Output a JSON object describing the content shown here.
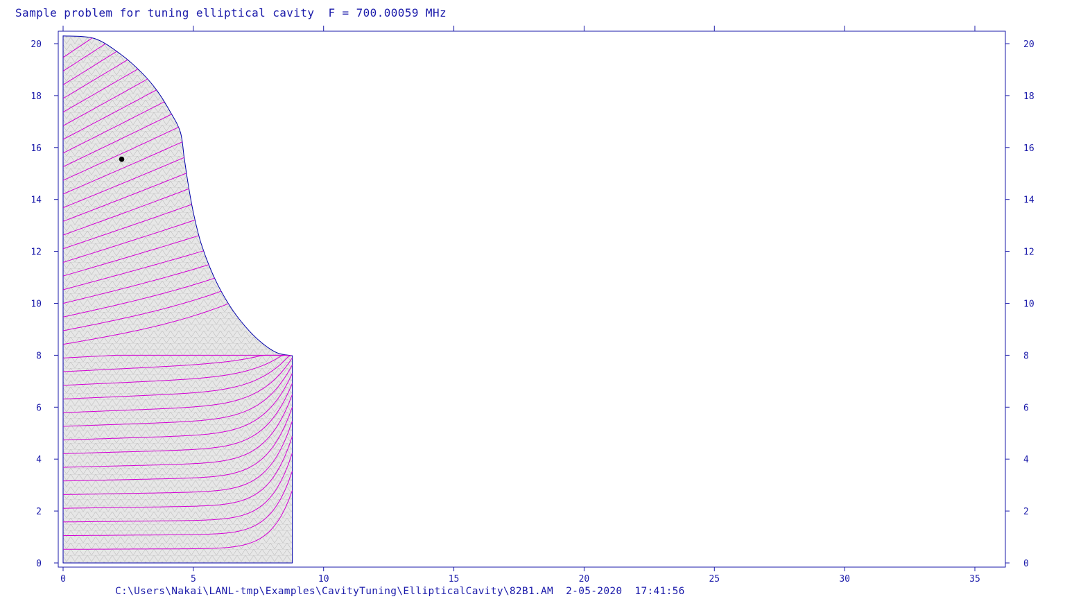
{
  "title": "Sample problem for tuning elliptical cavity  F = 700.00059 MHz",
  "footer": "C:\\Users\\Nakai\\LANL-tmp\\Examples\\CavityTuning\\EllipticalCavity\\82B1.AM  2-05-2020  17:41:56",
  "colors": {
    "axis": "#1a1aaa",
    "boundary": "#0000aa",
    "mesh": "#bdbdbd",
    "mesh_fill": "#e7e7e7",
    "field_lines": "#d400d4",
    "marker": "#000000"
  },
  "chart_data": {
    "type": "contour",
    "xlim": [
      0,
      36
    ],
    "ylim": [
      -0.1,
      20.5
    ],
    "x_ticks": [
      0,
      5,
      10,
      15,
      20,
      25,
      30,
      35
    ],
    "y_ticks": [
      0,
      2,
      4,
      6,
      8,
      10,
      12,
      14,
      16,
      18,
      20
    ],
    "x_tick_labels": [
      "0",
      "5",
      "10",
      "15",
      "20",
      "25",
      "30",
      "35"
    ],
    "y_tick_labels": [
      "0",
      "2",
      "4",
      "6",
      "8",
      "10",
      "12",
      "14",
      "16",
      "18",
      "20"
    ],
    "right_axis_labels": true,
    "grid": false,
    "cavity_boundary": [
      [
        0,
        20.3
      ],
      [
        1.2,
        20.2
      ],
      [
        2.2,
        19.6
      ],
      [
        3.0,
        18.9
      ],
      [
        3.6,
        18.2
      ],
      [
        4.1,
        17.4
      ],
      [
        4.5,
        16.6
      ],
      [
        4.65,
        15.6
      ],
      [
        4.8,
        14.6
      ],
      [
        5.0,
        13.5
      ],
      [
        5.3,
        12.3
      ],
      [
        5.8,
        11.0
      ],
      [
        6.4,
        9.9
      ],
      [
        7.0,
        9.1
      ],
      [
        7.6,
        8.5
      ],
      [
        8.2,
        8.1
      ],
      [
        8.8,
        7.98
      ],
      [
        8.8,
        0
      ],
      [
        0,
        0
      ],
      [
        0,
        20.3
      ]
    ],
    "field_line_count": 37,
    "marker": {
      "x": 2.25,
      "y": 15.55
    }
  }
}
